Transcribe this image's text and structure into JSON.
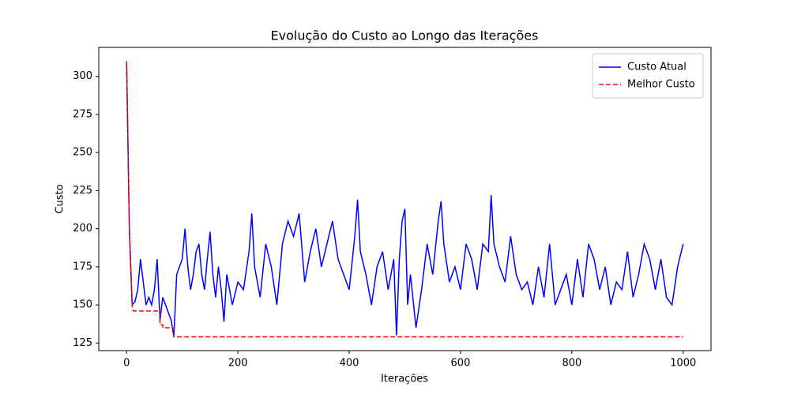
{
  "chart_data": {
    "type": "line",
    "title": "Evolução do Custo ao Longo das Iterações",
    "x_label": "Iterações",
    "y_label": "Custo",
    "xlim": [
      -50,
      1050
    ],
    "xticks": [
      0,
      200,
      400,
      600,
      800,
      1000
    ],
    "ylim": [
      120,
      319
    ],
    "yticks": [
      125,
      150,
      175,
      200,
      225,
      250,
      275,
      300
    ],
    "legend": "upper right",
    "series": [
      {
        "name": "Custo Atual",
        "color": "#0000ff",
        "dash": "solid",
        "x": [
          0,
          5,
          10,
          15,
          20,
          25,
          30,
          35,
          40,
          45,
          50,
          55,
          60,
          65,
          70,
          75,
          80,
          85,
          90,
          95,
          100,
          105,
          110,
          115,
          120,
          125,
          130,
          135,
          140,
          145,
          150,
          155,
          160,
          165,
          170,
          175,
          180,
          190,
          200,
          210,
          220,
          225,
          230,
          240,
          250,
          260,
          270,
          280,
          290,
          300,
          310,
          320,
          330,
          340,
          350,
          360,
          370,
          380,
          390,
          400,
          410,
          415,
          420,
          430,
          440,
          450,
          460,
          470,
          480,
          485,
          490,
          495,
          500,
          505,
          510,
          520,
          530,
          540,
          550,
          560,
          565,
          570,
          580,
          590,
          600,
          610,
          620,
          630,
          640,
          650,
          655,
          660,
          670,
          680,
          690,
          700,
          710,
          720,
          730,
          740,
          750,
          760,
          770,
          780,
          790,
          800,
          810,
          820,
          830,
          840,
          850,
          860,
          870,
          880,
          890,
          900,
          910,
          920,
          930,
          940,
          950,
          960,
          970,
          980,
          990,
          1000
        ],
        "values": [
          310,
          200,
          150,
          152,
          160,
          180,
          165,
          150,
          155,
          150,
          160,
          180,
          140,
          155,
          150,
          145,
          140,
          129,
          170,
          175,
          180,
          200,
          175,
          160,
          170,
          185,
          190,
          170,
          160,
          180,
          198,
          170,
          155,
          175,
          160,
          139,
          170,
          150,
          165,
          160,
          185,
          210,
          175,
          155,
          190,
          175,
          150,
          190,
          205,
          195,
          210,
          165,
          185,
          200,
          175,
          190,
          205,
          180,
          170,
          160,
          195,
          219,
          185,
          170,
          150,
          175,
          185,
          160,
          180,
          130,
          180,
          205,
          213,
          150,
          170,
          135,
          160,
          190,
          170,
          205,
          218,
          190,
          165,
          175,
          160,
          190,
          180,
          160,
          190,
          185,
          222,
          190,
          175,
          165,
          195,
          170,
          160,
          165,
          150,
          175,
          155,
          190,
          150,
          160,
          170,
          150,
          180,
          155,
          190,
          180,
          160,
          175,
          150,
          165,
          160,
          185,
          155,
          170,
          190,
          180,
          160,
          180,
          155,
          150,
          175,
          190
        ]
      },
      {
        "name": "Melhor Custo",
        "color": "#ff0000",
        "dash": "dashed",
        "x": [
          0,
          5,
          10,
          12,
          60,
          60,
          65,
          65,
          85,
          85,
          1000
        ],
        "values": [
          310,
          200,
          150,
          146,
          146,
          137,
          137,
          135,
          135,
          129,
          129
        ]
      }
    ]
  }
}
